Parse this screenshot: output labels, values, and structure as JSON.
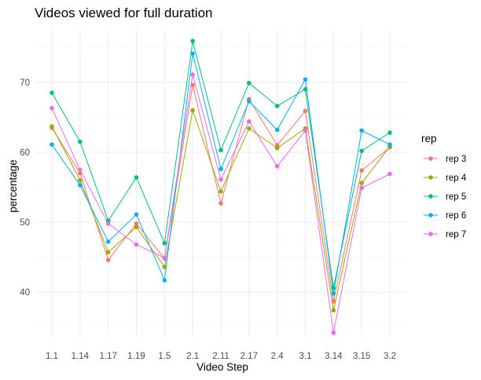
{
  "chart_data": {
    "type": "line",
    "title": "Videos viewed for full duration",
    "xlabel": "Video Step",
    "ylabel": "percentage",
    "categories": [
      "1.1",
      "1.14",
      "1.17",
      "1.19",
      "1.5",
      "2.1",
      "2.11",
      "2.17",
      "2.4",
      "3.1",
      "3.14",
      "3.15",
      "3.2"
    ],
    "ylim": [
      33.5,
      77.5
    ],
    "yticks": [
      40,
      50,
      60,
      70
    ],
    "grid": true,
    "legend": {
      "title": "rep",
      "position": "right"
    },
    "series": [
      {
        "name": "rep 3",
        "color": "#F8766D",
        "values": [
          63.5,
          57.0,
          44.6,
          49.8,
          44.8,
          69.6,
          52.7,
          67.6,
          61.0,
          65.9,
          38.7,
          57.4,
          60.7
        ]
      },
      {
        "name": "rep 4",
        "color": "#A3A500",
        "values": [
          63.7,
          56.0,
          45.7,
          49.3,
          43.6,
          66.0,
          54.4,
          63.4,
          60.6,
          63.4,
          37.4,
          55.6,
          60.8
        ]
      },
      {
        "name": "rep 5",
        "color": "#00BF7D",
        "values": [
          68.5,
          61.5,
          50.2,
          56.4,
          47.0,
          75.9,
          60.3,
          69.9,
          66.6,
          69.0,
          40.6,
          60.2,
          62.8
        ]
      },
      {
        "name": "rep 6",
        "color": "#00B0F6",
        "values": [
          61.1,
          55.3,
          47.2,
          51.1,
          41.7,
          74.1,
          57.6,
          67.3,
          63.2,
          70.4,
          39.8,
          63.1,
          61.1
        ]
      },
      {
        "name": "rep 7",
        "color": "#E76BF3",
        "values": [
          66.3,
          57.5,
          49.8,
          46.8,
          44.9,
          71.1,
          56.1,
          64.4,
          58.0,
          63.1,
          34.2,
          54.9,
          56.9
        ]
      }
    ]
  }
}
